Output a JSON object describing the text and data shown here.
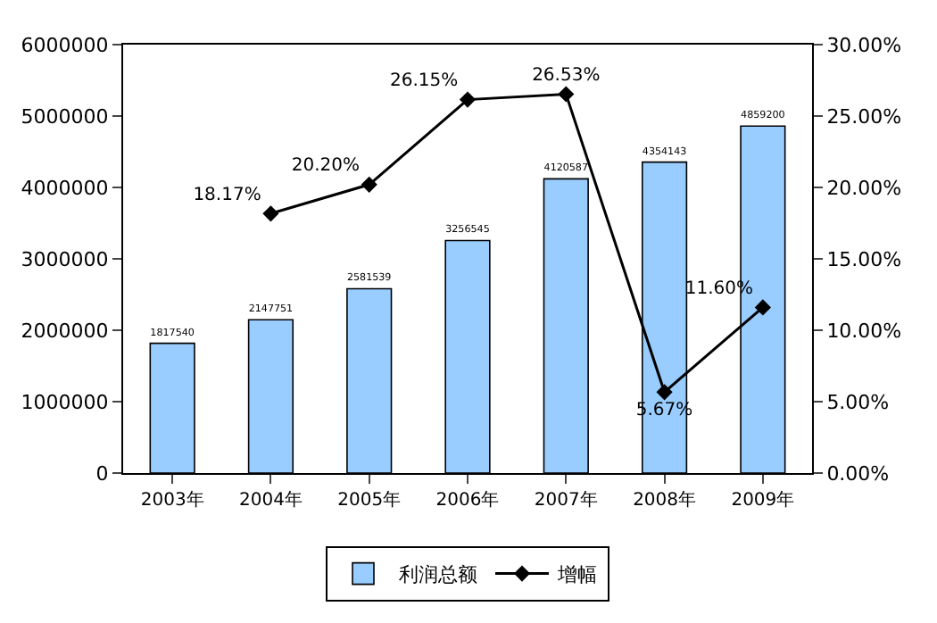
{
  "chart_data": {
    "type": "bar",
    "categories": [
      "2003年",
      "2004年",
      "2005年",
      "2006年",
      "2007年",
      "2008年",
      "2009年"
    ],
    "series": [
      {
        "name": "利润总额",
        "color": "#99ccff",
        "values": [
          1817540,
          2147751,
          2581539,
          3256545,
          4120587,
          4354143,
          4859200
        ],
        "value_labels": [
          "1817540",
          "2147751",
          "2581539",
          "3256545",
          "4120587",
          "4354143",
          "4859200"
        ]
      },
      {
        "name": "增幅",
        "type": "line",
        "axis": "y2",
        "color": "#000000",
        "marker": "diamond",
        "values": [
          null,
          18.17,
          20.2,
          26.15,
          26.53,
          5.67,
          11.6
        ],
        "value_labels": [
          null,
          "18.17%",
          "20.20%",
          "26.15%",
          "26.53%",
          "5.67%",
          "11.60%"
        ]
      }
    ],
    "ylim": [
      0,
      6000000
    ],
    "yticks": [
      0,
      1000000,
      2000000,
      3000000,
      4000000,
      5000000,
      6000000
    ],
    "y2lim": [
      0,
      30
    ],
    "y2ticks": [
      {
        "value": 0,
        "label": "0.00%"
      },
      {
        "value": 5,
        "label": "5.00%"
      },
      {
        "value": 10,
        "label": "10.00%"
      },
      {
        "value": 15,
        "label": "15.00%"
      },
      {
        "value": 20,
        "label": "20.00%"
      },
      {
        "value": 25,
        "label": "25.00%"
      },
      {
        "value": 30,
        "label": "30.00%"
      }
    ],
    "legend": "bottom"
  }
}
